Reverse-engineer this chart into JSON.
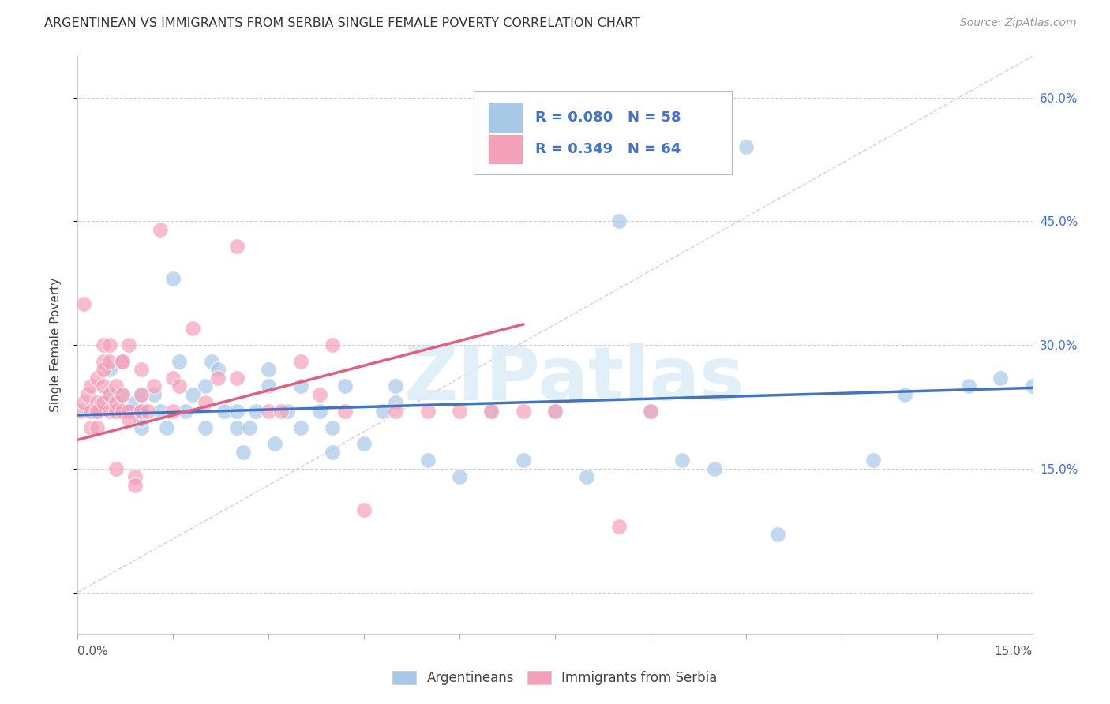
{
  "title": "ARGENTINEAN VS IMMIGRANTS FROM SERBIA SINGLE FEMALE POVERTY CORRELATION CHART",
  "source": "Source: ZipAtlas.com",
  "ylabel": "Single Female Poverty",
  "color_blue": "#a8c8e8",
  "color_pink": "#f4a0b8",
  "color_blue_line": "#4472c4",
  "color_pink_line": "#e06080",
  "color_blue_text": "#4472c4",
  "color_pink_text": "#e06080",
  "watermark": "ZIPatlas",
  "xlim": [
    0.0,
    0.15
  ],
  "ylim": [
    -0.05,
    0.65
  ],
  "right_ytick_vals": [
    0.6,
    0.45,
    0.3,
    0.15
  ],
  "grid_yticks": [
    0.0,
    0.15,
    0.3,
    0.45,
    0.6
  ],
  "blue_scatter_x": [
    0.005,
    0.005,
    0.006,
    0.007,
    0.008,
    0.009,
    0.01,
    0.01,
    0.01,
    0.01,
    0.012,
    0.013,
    0.014,
    0.015,
    0.016,
    0.017,
    0.018,
    0.02,
    0.02,
    0.021,
    0.022,
    0.023,
    0.025,
    0.025,
    0.026,
    0.027,
    0.028,
    0.03,
    0.03,
    0.031,
    0.033,
    0.035,
    0.035,
    0.038,
    0.04,
    0.04,
    0.042,
    0.045,
    0.048,
    0.05,
    0.05,
    0.055,
    0.06,
    0.065,
    0.07,
    0.075,
    0.08,
    0.085,
    0.09,
    0.095,
    0.1,
    0.105,
    0.11,
    0.125,
    0.13,
    0.14,
    0.145,
    0.15
  ],
  "blue_scatter_y": [
    0.24,
    0.27,
    0.22,
    0.24,
    0.22,
    0.23,
    0.24,
    0.22,
    0.2,
    0.21,
    0.24,
    0.22,
    0.2,
    0.38,
    0.28,
    0.22,
    0.24,
    0.25,
    0.2,
    0.28,
    0.27,
    0.22,
    0.22,
    0.2,
    0.17,
    0.2,
    0.22,
    0.25,
    0.27,
    0.18,
    0.22,
    0.2,
    0.25,
    0.22,
    0.17,
    0.2,
    0.25,
    0.18,
    0.22,
    0.25,
    0.23,
    0.16,
    0.14,
    0.22,
    0.16,
    0.22,
    0.14,
    0.45,
    0.22,
    0.16,
    0.15,
    0.54,
    0.07,
    0.16,
    0.24,
    0.25,
    0.26,
    0.25
  ],
  "pink_scatter_x": [
    0.0005,
    0.001,
    0.001,
    0.0015,
    0.002,
    0.002,
    0.002,
    0.003,
    0.003,
    0.003,
    0.003,
    0.003,
    0.004,
    0.004,
    0.004,
    0.004,
    0.004,
    0.005,
    0.005,
    0.005,
    0.005,
    0.006,
    0.006,
    0.006,
    0.006,
    0.007,
    0.007,
    0.007,
    0.007,
    0.008,
    0.008,
    0.008,
    0.009,
    0.009,
    0.01,
    0.01,
    0.01,
    0.01,
    0.011,
    0.012,
    0.013,
    0.015,
    0.015,
    0.016,
    0.018,
    0.02,
    0.022,
    0.025,
    0.025,
    0.03,
    0.032,
    0.035,
    0.038,
    0.04,
    0.042,
    0.045,
    0.05,
    0.055,
    0.06,
    0.065,
    0.07,
    0.075,
    0.085,
    0.09
  ],
  "pink_scatter_y": [
    0.22,
    0.23,
    0.35,
    0.24,
    0.22,
    0.25,
    0.2,
    0.23,
    0.26,
    0.22,
    0.2,
    0.22,
    0.28,
    0.27,
    0.25,
    0.3,
    0.23,
    0.22,
    0.24,
    0.3,
    0.28,
    0.15,
    0.22,
    0.25,
    0.23,
    0.28,
    0.28,
    0.22,
    0.24,
    0.22,
    0.3,
    0.21,
    0.14,
    0.13,
    0.22,
    0.24,
    0.27,
    0.22,
    0.22,
    0.25,
    0.44,
    0.26,
    0.22,
    0.25,
    0.32,
    0.23,
    0.26,
    0.42,
    0.26,
    0.22,
    0.22,
    0.28,
    0.24,
    0.3,
    0.22,
    0.1,
    0.22,
    0.22,
    0.22,
    0.22,
    0.22,
    0.22,
    0.08,
    0.22
  ],
  "blue_line_x": [
    0.0,
    0.15
  ],
  "blue_line_y": [
    0.215,
    0.248
  ],
  "pink_line_x": [
    0.0,
    0.07
  ],
  "pink_line_y": [
    0.185,
    0.325
  ],
  "diag_line_x": [
    0.0,
    0.15
  ],
  "diag_line_y": [
    0.0,
    0.65
  ],
  "legend_blue_R": "R = 0.080",
  "legend_blue_N": "N = 58",
  "legend_pink_R": "R = 0.349",
  "legend_pink_N": "N = 64"
}
